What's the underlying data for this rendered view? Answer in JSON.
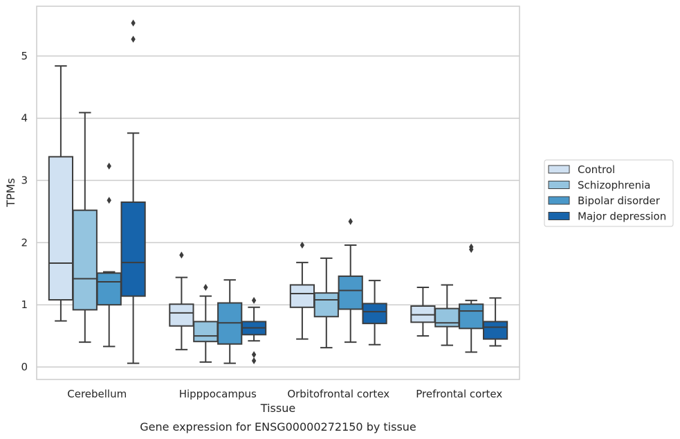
{
  "chart_data": {
    "type": "box",
    "title": "",
    "caption": "Gene expression for ENSG00000272150 by tissue",
    "xlabel": "Tissue",
    "ylabel": "TPMs",
    "ylim": [
      -0.2,
      5.8
    ],
    "yticks": [
      0,
      1,
      2,
      3,
      4,
      5
    ],
    "ytick_labels": [
      "0",
      "1",
      "2",
      "3",
      "4",
      "5"
    ],
    "grid": "horizontal",
    "legend_position": "right",
    "categories": [
      "Cerebellum",
      "Hipppocampus",
      "Orbitofrontal cortex",
      "Prefrontal cortex"
    ],
    "series": [
      {
        "name": "Control",
        "color": "#d0e1f2",
        "boxes": [
          {
            "whislo": 0.74,
            "q1": 1.08,
            "med": 1.67,
            "q3": 3.38,
            "whishi": 4.84,
            "fliers": []
          },
          {
            "whislo": 0.28,
            "q1": 0.66,
            "med": 0.87,
            "q3": 1.01,
            "whishi": 1.44,
            "fliers": [
              1.8
            ]
          },
          {
            "whislo": 0.45,
            "q1": 0.96,
            "med": 1.18,
            "q3": 1.32,
            "whishi": 1.68,
            "fliers": [
              1.96
            ]
          },
          {
            "whislo": 0.5,
            "q1": 0.72,
            "med": 0.84,
            "q3": 0.98,
            "whishi": 1.28,
            "fliers": []
          }
        ]
      },
      {
        "name": "Schizophrenia",
        "color": "#94c4df",
        "boxes": [
          {
            "whislo": 0.4,
            "q1": 0.92,
            "med": 1.42,
            "q3": 2.52,
            "whishi": 4.09,
            "fliers": []
          },
          {
            "whislo": 0.08,
            "q1": 0.41,
            "med": 0.5,
            "q3": 0.73,
            "whishi": 1.14,
            "fliers": [
              1.28
            ]
          },
          {
            "whislo": 0.31,
            "q1": 0.81,
            "med": 1.08,
            "q3": 1.19,
            "whishi": 1.75,
            "fliers": []
          },
          {
            "whislo": 0.35,
            "q1": 0.65,
            "med": 0.71,
            "q3": 0.94,
            "whishi": 1.32,
            "fliers": []
          }
        ]
      },
      {
        "name": "Bipolar disorder",
        "color": "#4a98c9",
        "boxes": [
          {
            "whislo": 0.33,
            "q1": 1.0,
            "med": 1.37,
            "q3": 1.51,
            "whishi": 1.53,
            "fliers": [
              2.68,
              3.23
            ]
          },
          {
            "whislo": 0.06,
            "q1": 0.37,
            "med": 0.71,
            "q3": 1.03,
            "whishi": 1.4,
            "fliers": []
          },
          {
            "whislo": 0.4,
            "q1": 0.93,
            "med": 1.23,
            "q3": 1.46,
            "whishi": 1.96,
            "fliers": [
              2.34
            ]
          },
          {
            "whislo": 0.24,
            "q1": 0.62,
            "med": 0.9,
            "q3": 1.01,
            "whishi": 1.07,
            "fliers": [
              1.89,
              1.93
            ]
          }
        ]
      },
      {
        "name": "Major depression",
        "color": "#1764ab",
        "boxes": [
          {
            "whislo": 0.06,
            "q1": 1.14,
            "med": 1.68,
            "q3": 2.65,
            "whishi": 3.76,
            "fliers": [
              5.27,
              5.53
            ]
          },
          {
            "whislo": 0.42,
            "q1": 0.52,
            "med": 0.63,
            "q3": 0.73,
            "whishi": 0.96,
            "fliers": [
              0.1,
              0.2,
              1.07
            ]
          },
          {
            "whislo": 0.36,
            "q1": 0.7,
            "med": 0.89,
            "q3": 1.02,
            "whishi": 1.39,
            "fliers": []
          },
          {
            "whislo": 0.34,
            "q1": 0.45,
            "med": 0.64,
            "q3": 0.73,
            "whishi": 1.11,
            "fliers": []
          }
        ]
      }
    ]
  }
}
